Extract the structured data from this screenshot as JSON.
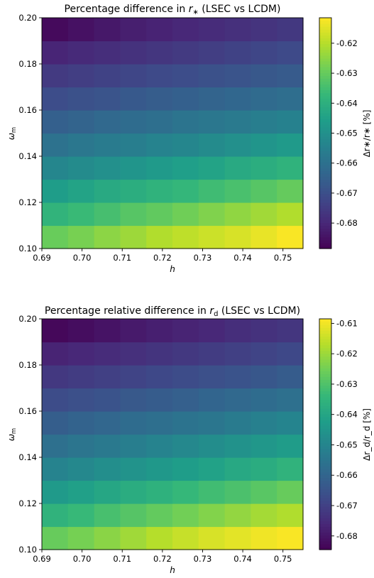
{
  "chart_data": [
    {
      "type": "heatmap",
      "title_prefix": "Percentage difference in ",
      "title_var": "r",
      "title_sub": "∗",
      "title_suffix": " (LSEC vs LCDM)",
      "xlabel": "h",
      "ylabel_main": "ω",
      "ylabel_sub": "m",
      "colorbar_label": "Δr∗/r∗ [%]",
      "x_ticks": [
        "0.69",
        "0.70",
        "0.71",
        "0.72",
        "0.73",
        "0.74",
        "0.75"
      ],
      "y_ticks": [
        "0.10",
        "0.12",
        "0.14",
        "0.16",
        "0.18",
        "0.20"
      ],
      "colorbar_ticks": [
        "-0.68",
        "-0.67",
        "-0.66",
        "-0.65",
        "-0.64",
        "-0.63",
        "-0.62"
      ],
      "xlim": [
        0.69,
        0.755
      ],
      "ylim": [
        0.1,
        0.2
      ],
      "zlim": [
        -0.6885,
        -0.6115
      ],
      "colormap": "viridis",
      "grid": false,
      "x_centers": [
        0.6933,
        0.7,
        0.7067,
        0.7133,
        0.72,
        0.7267,
        0.7333,
        0.74,
        0.7467,
        0.7533
      ],
      "y_centers": [
        0.105,
        0.115,
        0.125,
        0.135,
        0.145,
        0.155,
        0.165,
        0.175,
        0.185,
        0.195
      ],
      "z": [
        [
          -0.6295,
          -0.6275,
          -0.625,
          -0.623,
          -0.6205,
          -0.619,
          -0.6175,
          -0.616,
          -0.614,
          -0.612
        ],
        [
          -0.6385,
          -0.6365,
          -0.6345,
          -0.632,
          -0.6305,
          -0.6285,
          -0.6265,
          -0.6245,
          -0.6225,
          -0.6205
        ],
        [
          -0.646,
          -0.644,
          -0.642,
          -0.6405,
          -0.639,
          -0.6375,
          -0.6355,
          -0.634,
          -0.632,
          -0.63
        ],
        [
          -0.653,
          -0.6515,
          -0.65,
          -0.6485,
          -0.647,
          -0.6455,
          -0.644,
          -0.642,
          -0.6405,
          -0.639
        ],
        [
          -0.6595,
          -0.658,
          -0.6565,
          -0.6555,
          -0.654,
          -0.653,
          -0.6515,
          -0.65,
          -0.6485,
          -0.647
        ],
        [
          -0.665,
          -0.664,
          -0.6625,
          -0.6615,
          -0.6605,
          -0.659,
          -0.658,
          -0.657,
          -0.6555,
          -0.6545
        ],
        [
          -0.6705,
          -0.6695,
          -0.6685,
          -0.667,
          -0.666,
          -0.665,
          -0.664,
          -0.663,
          -0.662,
          -0.661
        ],
        [
          -0.6755,
          -0.6745,
          -0.6735,
          -0.6725,
          -0.6715,
          -0.6705,
          -0.6695,
          -0.6685,
          -0.6675,
          -0.6665
        ],
        [
          -0.6805,
          -0.6795,
          -0.6785,
          -0.6775,
          -0.6765,
          -0.6755,
          -0.6745,
          -0.6735,
          -0.6725,
          -0.6715
        ],
        [
          -0.6865,
          -0.685,
          -0.6835,
          -0.682,
          -0.681,
          -0.68,
          -0.679,
          -0.678,
          -0.677,
          -0.676
        ]
      ]
    },
    {
      "type": "heatmap",
      "title_prefix": "Percentage relative difference in ",
      "title_var": "r",
      "title_sub": "d",
      "title_suffix": " (LSEC vs LCDM)",
      "xlabel": "h",
      "ylabel_main": "ω",
      "ylabel_sub": "m",
      "colorbar_label": "Δr_d/r_d [%]",
      "x_ticks": [
        "0.69",
        "0.70",
        "0.71",
        "0.72",
        "0.73",
        "0.74",
        "0.75"
      ],
      "y_ticks": [
        "0.10",
        "0.12",
        "0.14",
        "0.16",
        "0.18",
        "0.20"
      ],
      "colorbar_ticks": [
        "-0.68",
        "-0.67",
        "-0.66",
        "-0.65",
        "-0.64",
        "-0.63",
        "-0.62",
        "-0.61"
      ],
      "xlim": [
        0.69,
        0.755
      ],
      "ylim": [
        0.1,
        0.2
      ],
      "zlim": [
        -0.6845,
        -0.6085
      ],
      "colormap": "viridis",
      "grid": false,
      "x_centers": [
        0.6933,
        0.7,
        0.7067,
        0.7133,
        0.72,
        0.7267,
        0.7333,
        0.74,
        0.7467,
        0.7533
      ],
      "y_centers": [
        0.105,
        0.115,
        0.125,
        0.135,
        0.145,
        0.155,
        0.165,
        0.175,
        0.185,
        0.195
      ],
      "z": [
        [
          -0.6265,
          -0.6245,
          -0.622,
          -0.6195,
          -0.617,
          -0.615,
          -0.613,
          -0.6115,
          -0.61,
          -0.609
        ],
        [
          -0.6355,
          -0.6335,
          -0.631,
          -0.629,
          -0.627,
          -0.625,
          -0.623,
          -0.621,
          -0.619,
          -0.6175
        ],
        [
          -0.6435,
          -0.6415,
          -0.6395,
          -0.6375,
          -0.636,
          -0.634,
          -0.632,
          -0.6305,
          -0.6285,
          -0.6265
        ],
        [
          -0.6505,
          -0.649,
          -0.647,
          -0.6455,
          -0.644,
          -0.6425,
          -0.641,
          -0.639,
          -0.6375,
          -0.6355
        ],
        [
          -0.6565,
          -0.655,
          -0.6535,
          -0.652,
          -0.6505,
          -0.649,
          -0.6475,
          -0.646,
          -0.6445,
          -0.643
        ],
        [
          -0.662,
          -0.6605,
          -0.6595,
          -0.658,
          -0.657,
          -0.6555,
          -0.6545,
          -0.653,
          -0.6515,
          -0.65
        ],
        [
          -0.667,
          -0.666,
          -0.665,
          -0.6635,
          -0.6625,
          -0.6615,
          -0.66,
          -0.659,
          -0.658,
          -0.6565
        ],
        [
          -0.672,
          -0.671,
          -0.67,
          -0.669,
          -0.668,
          -0.667,
          -0.666,
          -0.665,
          -0.664,
          -0.6625
        ],
        [
          -0.677,
          -0.676,
          -0.675,
          -0.674,
          -0.673,
          -0.672,
          -0.671,
          -0.67,
          -0.669,
          -0.668
        ],
        [
          -0.683,
          -0.682,
          -0.6805,
          -0.679,
          -0.678,
          -0.677,
          -0.676,
          -0.6745,
          -0.6735,
          -0.6725
        ]
      ]
    }
  ]
}
